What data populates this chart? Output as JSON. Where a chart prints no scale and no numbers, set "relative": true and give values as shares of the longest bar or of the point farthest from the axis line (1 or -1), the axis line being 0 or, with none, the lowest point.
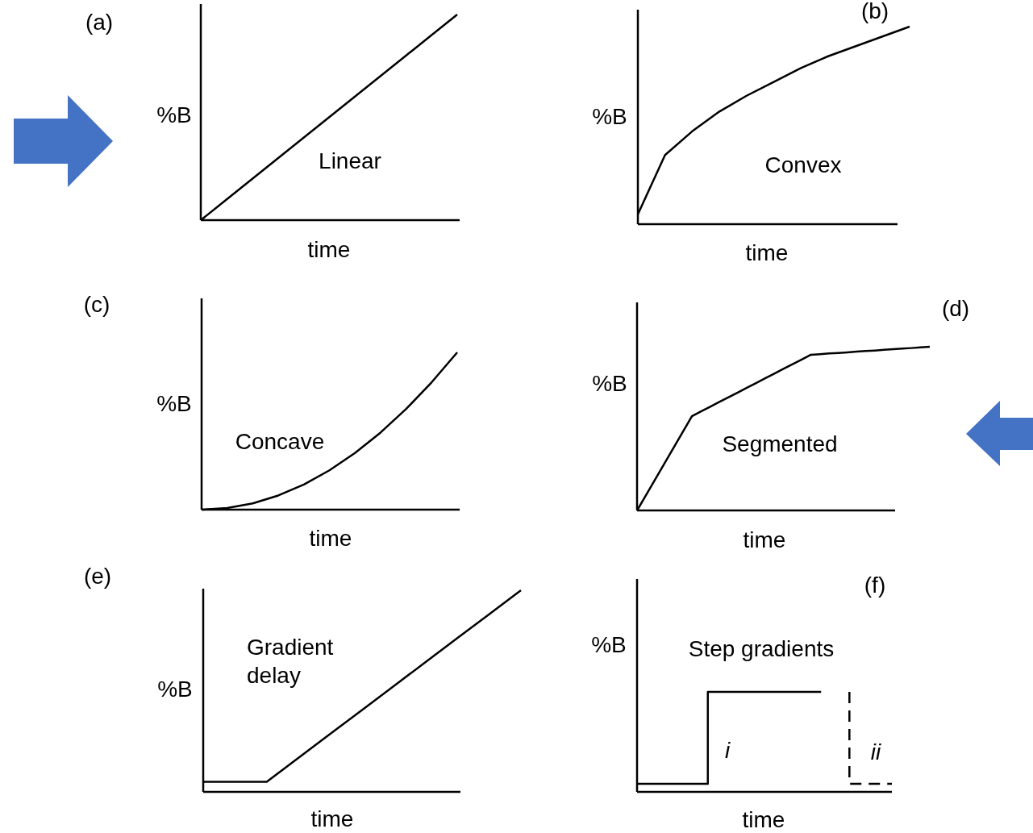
{
  "chart_data": [
    {
      "type": "line",
      "title": "(a)",
      "xlabel": "time",
      "ylabel": "%B",
      "relative": true,
      "annotations": [
        "Linear"
      ],
      "color": "#000000",
      "categories": [
        null,
        null,
        null,
        null,
        null,
        null,
        null,
        null,
        null,
        null,
        null
      ],
      "values": [
        0,
        0.1,
        0.2,
        0.3,
        0.4,
        0.5,
        0.6,
        0.7,
        0.8,
        0.9,
        1
      ]
    },
    {
      "type": "line",
      "title": "(b)",
      "xlabel": "time",
      "ylabel": "%B",
      "relative": true,
      "annotations": [
        "Convex"
      ],
      "color": "#000000",
      "categories": [
        null,
        null,
        null,
        null,
        null,
        null,
        null,
        null,
        null,
        null,
        null
      ],
      "values": [
        0.05,
        0.35,
        0.47,
        0.57,
        0.65,
        0.72,
        0.79,
        0.85,
        0.9,
        0.95,
        1
      ]
    },
    {
      "type": "line",
      "title": "(c)",
      "xlabel": "time",
      "ylabel": "%B",
      "relative": true,
      "annotations": [
        "Concave"
      ],
      "color": "#000000",
      "categories": [
        null,
        null,
        null,
        null,
        null,
        null,
        null,
        null,
        null,
        null,
        null
      ],
      "values": [
        0,
        0.01,
        0.04,
        0.09,
        0.16,
        0.25,
        0.36,
        0.49,
        0.64,
        0.81,
        1
      ]
    },
    {
      "type": "line",
      "title": "(d)",
      "xlabel": "time",
      "ylabel": "%B",
      "relative": true,
      "annotations": [
        "Segmented"
      ],
      "color": "#000000",
      "categories": [
        null,
        null,
        null,
        null,
        null,
        null,
        null,
        null,
        null,
        null,
        null,
        null,
        null,
        null,
        null,
        null,
        null,
        null,
        null,
        null,
        null,
        null,
        null,
        null,
        null,
        null,
        null,
        null,
        null,
        null,
        null,
        null,
        null
      ],
      "values": [
        0,
        0.096,
        0.192,
        0.288,
        0.384,
        0.48,
        0.576,
        0.605,
        0.634,
        0.663,
        0.691,
        0.72,
        0.749,
        0.778,
        0.807,
        0.836,
        0.865,
        0.893,
        0.922,
        0.951,
        0.955,
        0.959,
        0.962,
        0.966,
        0.97,
        0.974,
        0.977,
        0.981,
        0.985,
        0.989,
        0.992,
        0.996,
        1
      ]
    },
    {
      "type": "line",
      "title": "(e)",
      "xlabel": "time",
      "ylabel": "%B",
      "relative": true,
      "annotations": [
        "Gradient delay"
      ],
      "color": "#000000",
      "categories": [
        null,
        null,
        null,
        null,
        null,
        null,
        null,
        null,
        null,
        null,
        null
      ],
      "values": [
        0.05,
        0.05,
        0.05,
        0.169,
        0.288,
        0.406,
        0.525,
        0.644,
        0.763,
        0.881,
        1
      ]
    },
    {
      "type": "step",
      "title": "(f)",
      "xlabel": "time",
      "ylabel": "%B",
      "relative": true,
      "annotations": [
        "Step gradients"
      ],
      "categories": [
        null,
        null,
        null,
        null,
        null,
        null,
        null,
        null,
        null,
        null,
        null,
        null,
        null,
        null,
        null,
        null,
        null,
        null,
        null
      ],
      "series": [
        {
          "name": "i",
          "color": "#000000",
          "values": [
            0.08,
            0.08,
            0.08,
            0.08,
            0.08,
            0.08,
            1,
            1,
            1,
            1,
            1,
            1,
            1,
            1,
            null,
            null,
            null,
            null,
            null
          ]
        },
        {
          "name": "ii",
          "color": "#000000",
          "line_style": "dashed",
          "values": [
            null,
            null,
            null,
            null,
            null,
            null,
            null,
            null,
            null,
            null,
            null,
            null,
            null,
            null,
            null,
            1,
            0.08,
            0.08,
            0.08
          ]
        }
      ]
    }
  ]
}
